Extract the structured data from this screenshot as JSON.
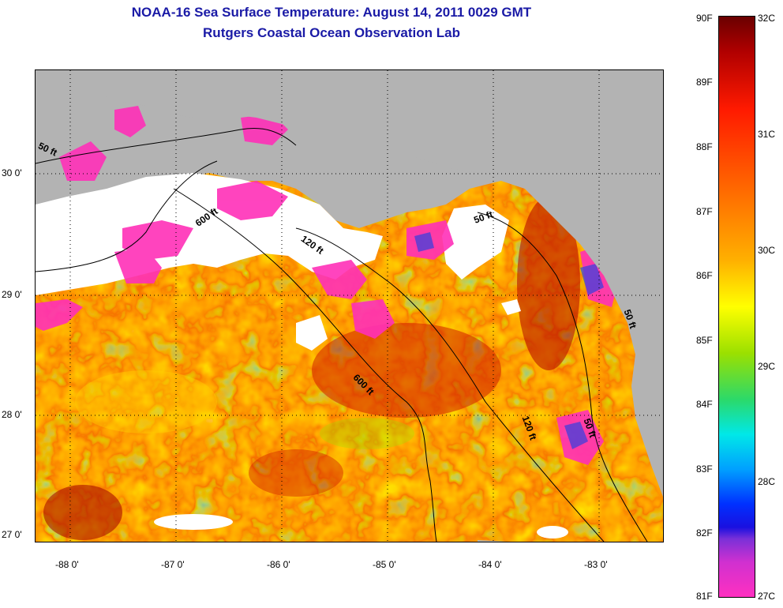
{
  "title_line1": "NOAA-16 Sea Surface Temperature:  August 14, 2011 0029 GMT",
  "title_line2": "Rutgers Coastal Ocean Observation Lab",
  "latitude_labels": [
    "30 0'",
    "29 0'",
    "28 0'",
    "27 0'"
  ],
  "longitude_labels": [
    "-88 0'",
    "-87 0'",
    "-86 0'",
    "-85 0'",
    "-84 0'",
    "-83 0'"
  ],
  "depth_contour_labels": [
    "50 ft",
    "600 ft",
    "120 ft",
    "50 ft",
    "600 ft",
    "120 ft",
    "50 ft",
    "50 ft"
  ],
  "colorbar": {
    "fahrenheit_labels": [
      "90F",
      "89F",
      "88F",
      "87F",
      "86F",
      "85F",
      "84F",
      "83F",
      "82F",
      "81F"
    ],
    "celsius_labels": [
      "32C",
      "31C",
      "30C",
      "29C",
      "28C",
      "27C"
    ]
  },
  "colors": {
    "title": "#1a1aa6",
    "land": "#b3b3b3",
    "cloud": "#ffffff",
    "cold_end": "#ff30c0",
    "warm_end": "#6a0000"
  }
}
